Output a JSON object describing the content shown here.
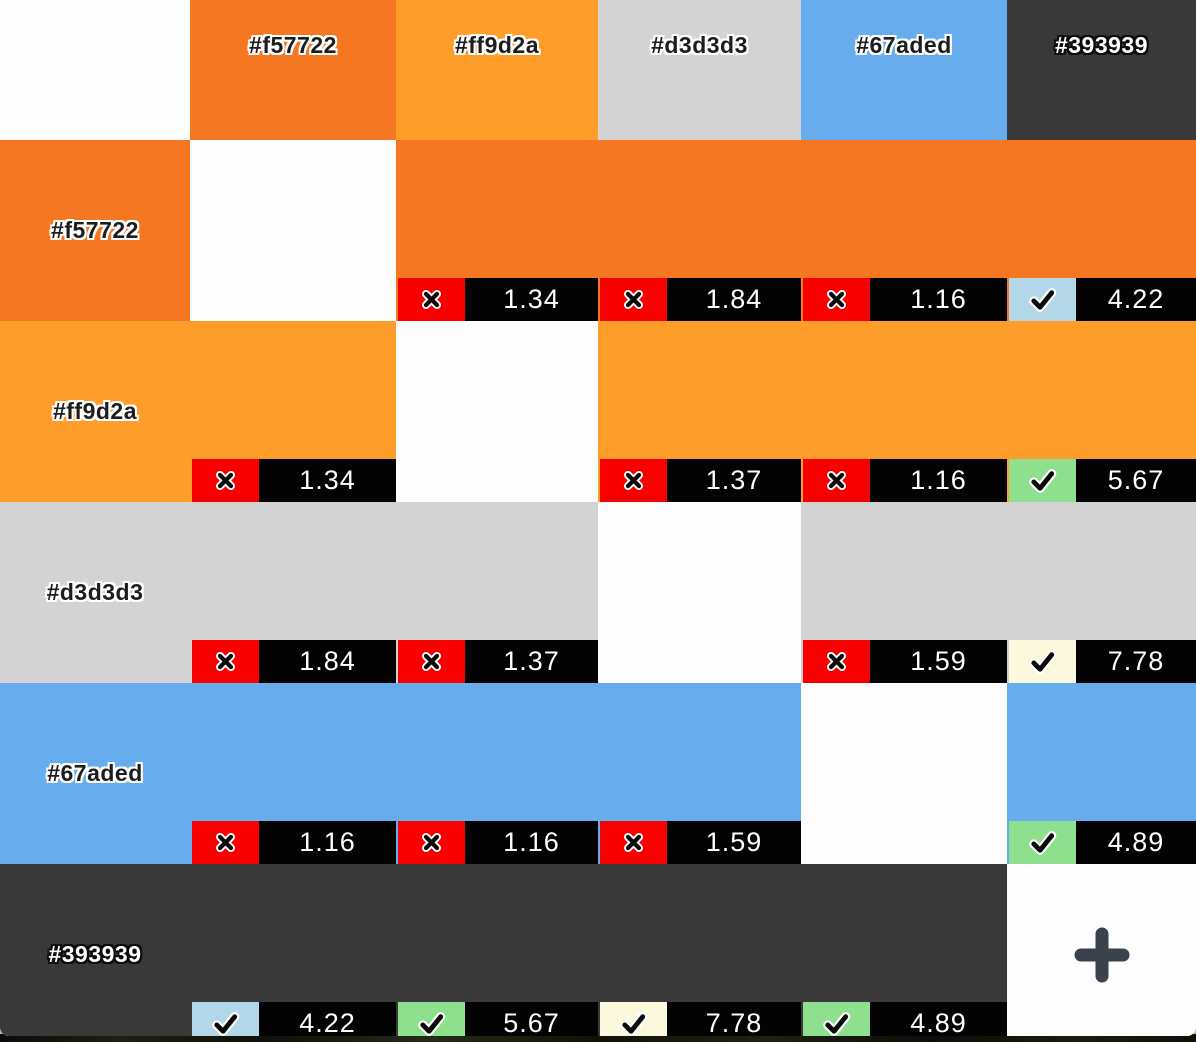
{
  "palette": [
    "#f57722",
    "#ff9d2a",
    "#d3d3d3",
    "#67aded",
    "#393939"
  ],
  "levels": {
    "fail": {
      "icon_name": "x-icon",
      "icon_glyph": "✕",
      "color": "#f90000"
    },
    "aa18": {
      "icon_name": "check-icon",
      "icon_glyph": "✓",
      "color": "#b3d7e8"
    },
    "aa": {
      "icon_name": "check-icon",
      "icon_glyph": "✓",
      "color": "#8ee08f"
    },
    "aaa": {
      "icon_name": "check-icon",
      "icon_glyph": "✓",
      "color": "#fbf8de"
    }
  },
  "badge_style": {
    "ratio_bg": "#030303",
    "ratio_text_color": "#ffffff"
  },
  "grid": {
    "column_headers": [
      "#f57722",
      "#ff9d2a",
      "#d3d3d3",
      "#67aded",
      "#393939"
    ],
    "rows": [
      {
        "label": "#f57722",
        "color": "#f57722",
        "cells": [
          {
            "self": true
          },
          {
            "ratio": "1.34",
            "level": "fail"
          },
          {
            "ratio": "1.84",
            "level": "fail"
          },
          {
            "ratio": "1.16",
            "level": "fail"
          },
          {
            "ratio": "4.22",
            "level": "aa18"
          }
        ]
      },
      {
        "label": "#ff9d2a",
        "color": "#ff9d2a",
        "cells": [
          {
            "ratio": "1.34",
            "level": "fail"
          },
          {
            "self": true
          },
          {
            "ratio": "1.37",
            "level": "fail"
          },
          {
            "ratio": "1.16",
            "level": "fail"
          },
          {
            "ratio": "5.67",
            "level": "aa"
          }
        ]
      },
      {
        "label": "#d3d3d3",
        "color": "#d3d3d3",
        "cells": [
          {
            "ratio": "1.84",
            "level": "fail"
          },
          {
            "ratio": "1.37",
            "level": "fail"
          },
          {
            "self": true
          },
          {
            "ratio": "1.59",
            "level": "fail"
          },
          {
            "ratio": "7.78",
            "level": "aaa"
          }
        ]
      },
      {
        "label": "#67aded",
        "color": "#67aded",
        "cells": [
          {
            "ratio": "1.16",
            "level": "fail"
          },
          {
            "ratio": "1.16",
            "level": "fail"
          },
          {
            "ratio": "1.59",
            "level": "fail"
          },
          {
            "self": true
          },
          {
            "ratio": "4.89",
            "level": "aa"
          }
        ]
      },
      {
        "label": "#393939",
        "color": "#393939",
        "cells": [
          {
            "ratio": "4.22",
            "level": "aa18"
          },
          {
            "ratio": "5.67",
            "level": "aa"
          },
          {
            "ratio": "7.78",
            "level": "aaa"
          },
          {
            "ratio": "4.89",
            "level": "aa"
          },
          {
            "self": true,
            "add_button": true
          }
        ]
      }
    ]
  },
  "add_button": {
    "symbol": "+",
    "icon_name": "plus-icon",
    "color": "#3a424b"
  }
}
